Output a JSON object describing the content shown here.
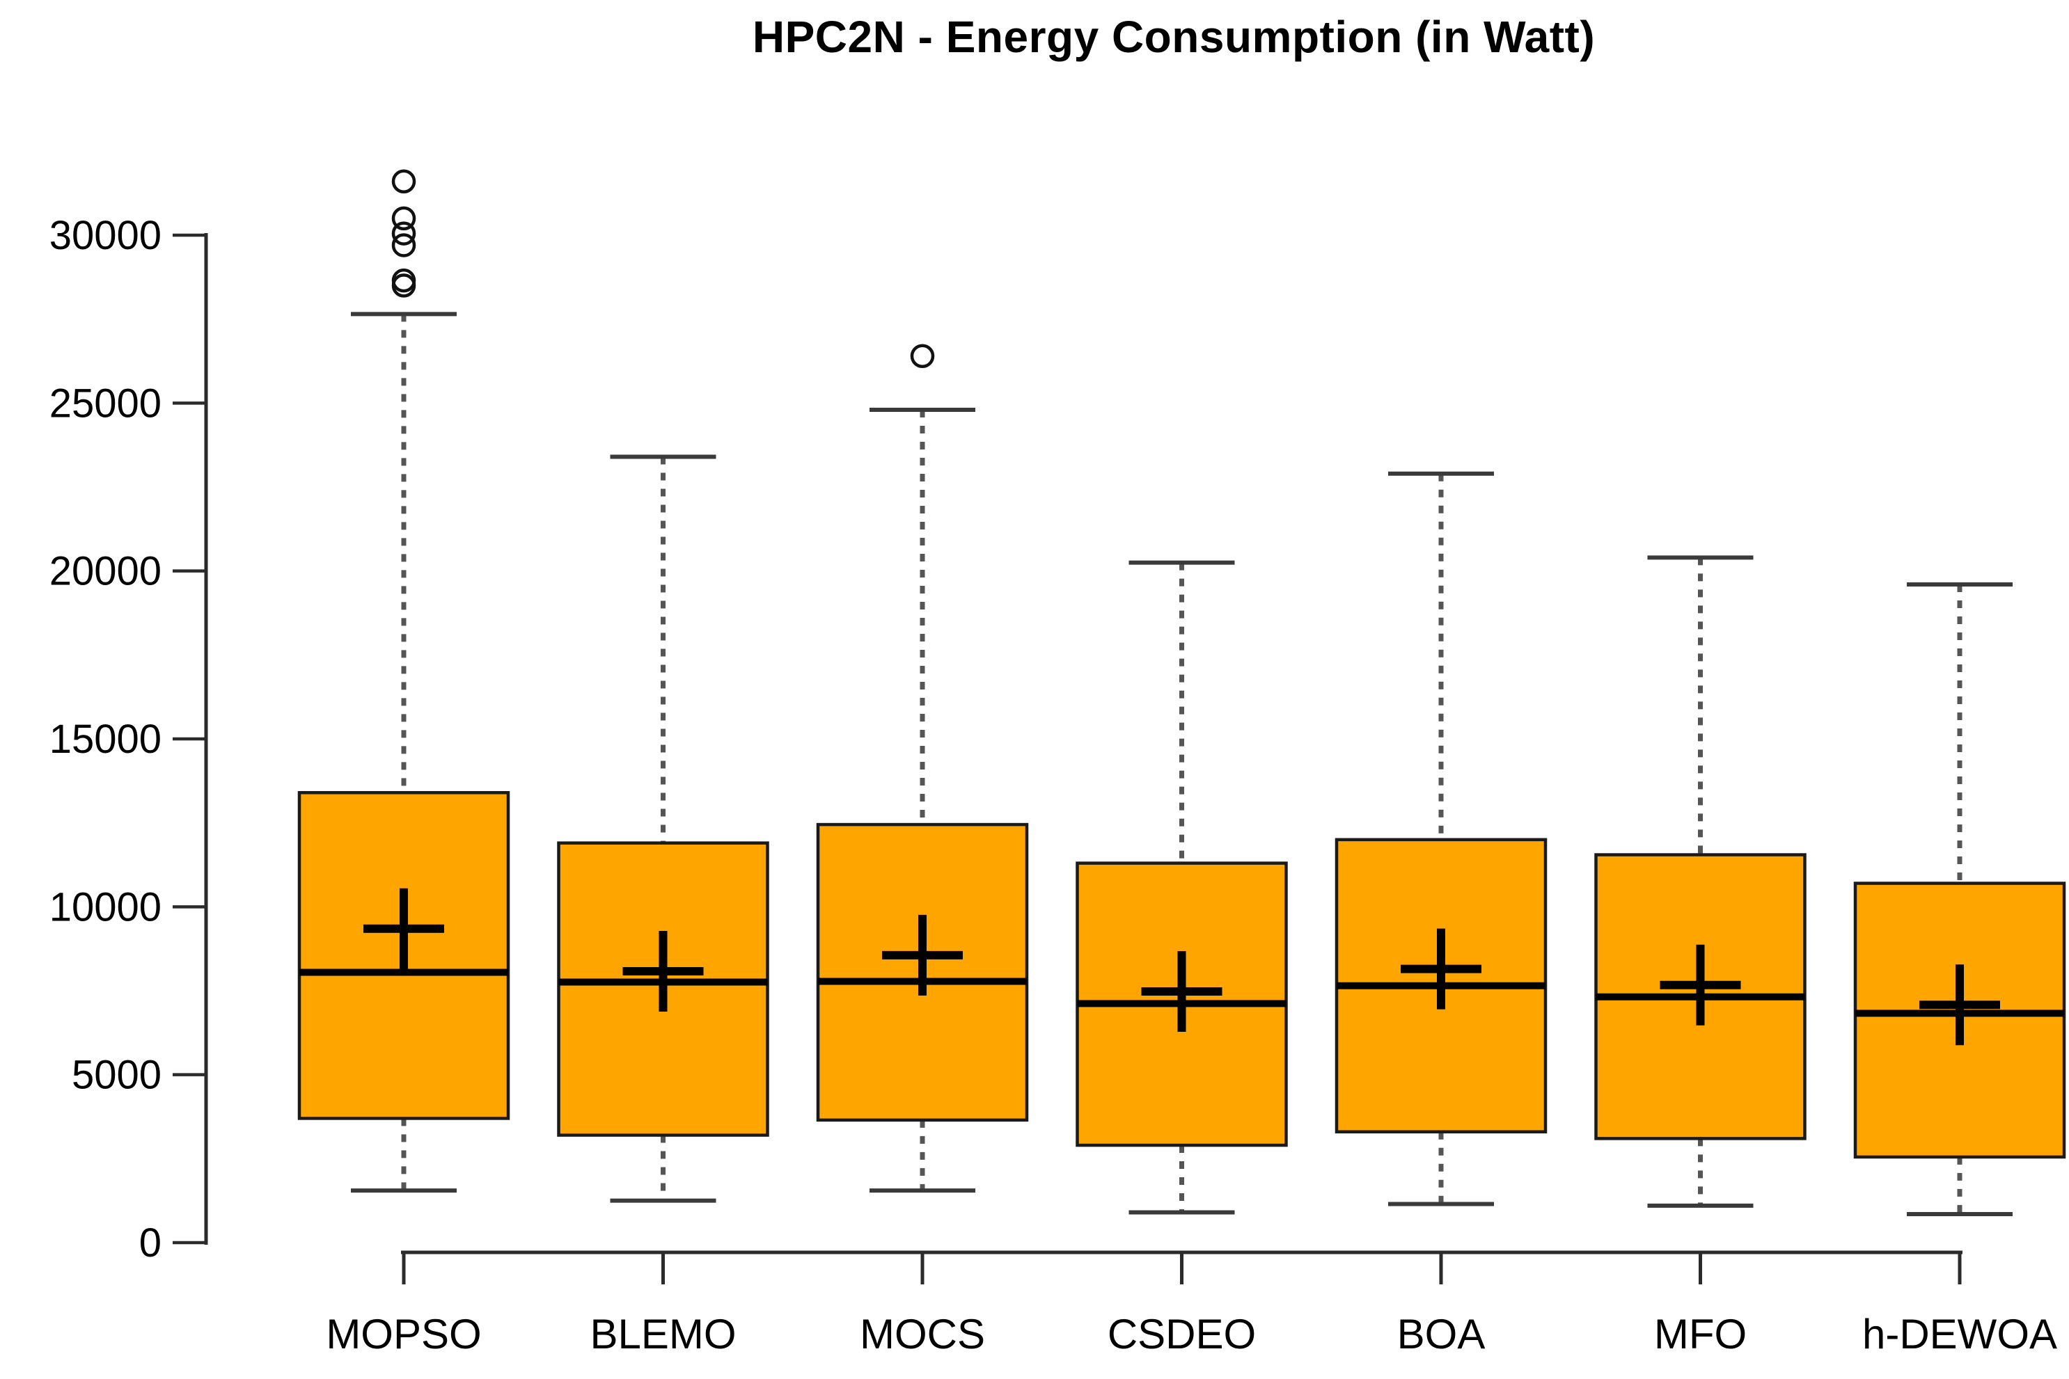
{
  "title": "HPC2N - Energy Consumption (in Watt)",
  "chart_data": {
    "type": "boxplot",
    "title": "HPC2N - Energy Consumption (in Watt)",
    "xlabel": "",
    "ylabel": "",
    "ylim": [
      0,
      30000
    ],
    "yticks": [
      0,
      5000,
      10000,
      15000,
      20000,
      25000,
      30000
    ],
    "ytick_labels": [
      "0",
      "5000",
      "10000",
      "15000",
      "20000",
      "25000",
      "30000"
    ],
    "grid": false,
    "legend": "none",
    "orientation": "vertical",
    "categories": [
      "MOPSO",
      "BLEMO",
      "MOCS",
      "CSDEO",
      "BOA",
      "MFO",
      "h-DEWOA"
    ],
    "colors": {
      "box_fill": "#FFA500",
      "box_stroke": "#1a1a1a",
      "median": "#000000",
      "mean_marker": "#000000",
      "whisker": "#555555",
      "cap": "#3a3a3a",
      "axis": "#2b2b2b",
      "outlier_stroke": "#111111"
    },
    "mean_marker_shape": "plus",
    "whisker_style": "dashed",
    "series": [
      {
        "name": "MOPSO",
        "whisker_low": 1550,
        "q1": 3700,
        "median": 8050,
        "mean": 9350,
        "q3": 13400,
        "whisker_high": 27650,
        "outliers": [
          31600,
          30500,
          30050,
          29700,
          28650,
          28500
        ]
      },
      {
        "name": "BLEMO",
        "whisker_low": 1250,
        "q1": 3200,
        "median": 7760,
        "mean": 8080,
        "q3": 11900,
        "whisker_high": 23400,
        "outliers": []
      },
      {
        "name": "MOCS",
        "whisker_low": 1550,
        "q1": 3650,
        "median": 7780,
        "mean": 8560,
        "q3": 12450,
        "whisker_high": 24800,
        "outliers": [
          26400
        ]
      },
      {
        "name": "CSDEO",
        "whisker_low": 900,
        "q1": 2900,
        "median": 7120,
        "mean": 7480,
        "q3": 11300,
        "whisker_high": 20250,
        "outliers": []
      },
      {
        "name": "BOA",
        "whisker_low": 1150,
        "q1": 3300,
        "median": 7650,
        "mean": 8150,
        "q3": 12000,
        "whisker_high": 22900,
        "outliers": []
      },
      {
        "name": "MFO",
        "whisker_low": 1100,
        "q1": 3100,
        "median": 7320,
        "mean": 7670,
        "q3": 11550,
        "whisker_high": 20400,
        "outliers": []
      },
      {
        "name": "h-DEWOA",
        "whisker_low": 850,
        "q1": 2550,
        "median": 6830,
        "mean": 7080,
        "q3": 10700,
        "whisker_high": 19600,
        "outliers": []
      }
    ]
  }
}
